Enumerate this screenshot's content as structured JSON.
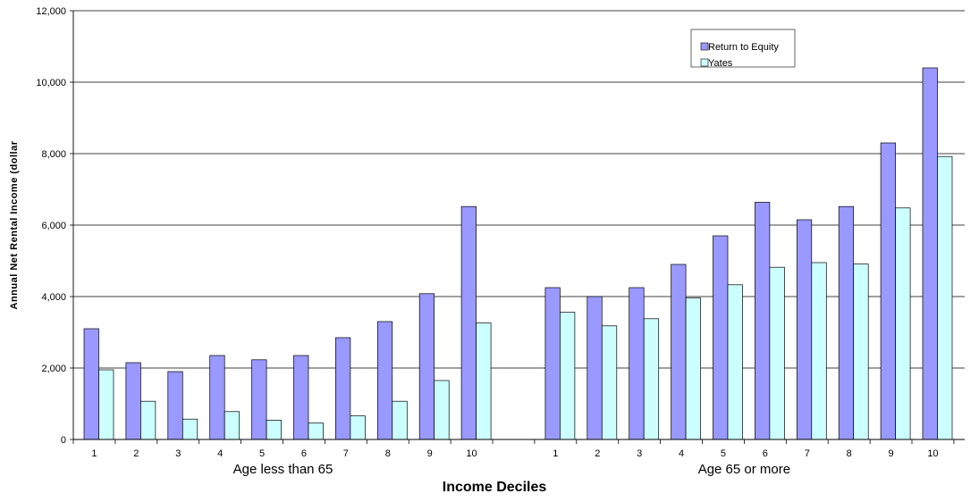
{
  "chart_data": {
    "type": "bar",
    "title": "",
    "xlabel": "Income Deciles",
    "ylabel": "Annual Net Rental Income (dollar",
    "ylim": [
      0,
      12000
    ],
    "yticks": [
      "0",
      "2,000",
      "4,000",
      "6,000",
      "8,000",
      "10,000",
      "12,000"
    ],
    "ytick_values": [
      0,
      2000,
      4000,
      6000,
      8000,
      10000,
      12000
    ],
    "grid": true,
    "legend_position": "top-right",
    "groups": [
      {
        "label": "Age less than 65",
        "categories": [
          "1",
          "2",
          "3",
          "4",
          "5",
          "6",
          "7",
          "8",
          "9",
          "10"
        ]
      },
      {
        "label": "Age 65 or more",
        "categories": [
          "1",
          "2",
          "3",
          "4",
          "5",
          "6",
          "7",
          "8",
          "9",
          "10"
        ]
      }
    ],
    "series": [
      {
        "name": "Return to Equity",
        "color": "#9999ff",
        "values": [
          [
            3100,
            2150,
            1900,
            2350,
            2230,
            2350,
            2850,
            3300,
            4080,
            6520
          ],
          [
            4250,
            4000,
            4250,
            4900,
            5700,
            6640,
            6150,
            6520,
            8300,
            10400
          ]
        ]
      },
      {
        "name": "Yates",
        "color": "#ccffff",
        "values": [
          [
            1950,
            1070,
            570,
            780,
            540,
            460,
            660,
            1070,
            1650,
            3260
          ],
          [
            3560,
            3180,
            3380,
            3960,
            4330,
            4820,
            4950,
            4910,
            6480,
            7920
          ]
        ]
      }
    ]
  }
}
